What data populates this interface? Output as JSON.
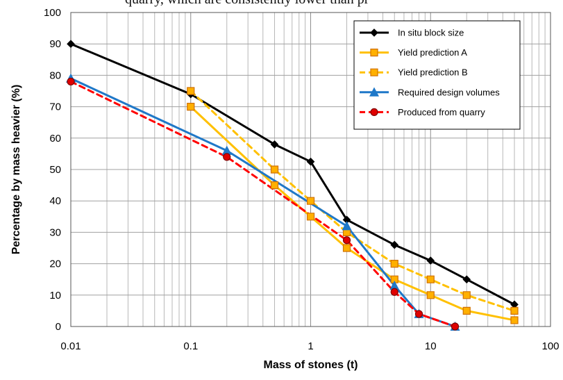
{
  "header": {
    "cropped_text": "quarry, which are consistently lower than pr"
  },
  "chart_data": {
    "type": "line",
    "title": "",
    "xlabel": "Mass of stones (t)",
    "ylabel": "Percentage by mass heavier (%)",
    "xscale": "log",
    "xlim": [
      0.01,
      100
    ],
    "ylim": [
      0,
      100
    ],
    "xticks": [
      0.01,
      0.1,
      1,
      10,
      100
    ],
    "xtick_labels": [
      "0.01",
      "0.1",
      "1",
      "10",
      "100"
    ],
    "yticks": [
      0,
      10,
      20,
      30,
      40,
      50,
      60,
      70,
      80,
      90,
      100
    ],
    "ytick_labels": [
      "0",
      "10",
      "20",
      "30",
      "40",
      "50",
      "60",
      "70",
      "80",
      "90",
      "100"
    ],
    "grid": true,
    "legend_position": "top-right",
    "series": [
      {
        "name": "In situ block size",
        "color": "#000000",
        "line_style": "solid",
        "marker": "diamond",
        "marker_fill": "#000000",
        "marker_edge": "#000000",
        "x": [
          0.01,
          0.1,
          0.5,
          1,
          2,
          5,
          10,
          20,
          50
        ],
        "y": [
          90,
          74,
          58,
          52.5,
          34,
          26,
          21,
          15,
          7
        ]
      },
      {
        "name": "Yield prediction A",
        "color": "#ffc000",
        "line_style": "solid",
        "marker": "square",
        "marker_fill": "#ffb000",
        "marker_edge": "#d07000",
        "x": [
          0.1,
          0.5,
          1,
          2,
          5,
          10,
          20,
          50
        ],
        "y": [
          70,
          45,
          35,
          25,
          15,
          10,
          5,
          2
        ]
      },
      {
        "name": "Yield prediction B",
        "color": "#ffc000",
        "line_style": "dashed",
        "marker": "square",
        "marker_fill": "#ffb000",
        "marker_edge": "#d07000",
        "x": [
          0.1,
          0.5,
          1,
          2,
          5,
          10,
          20,
          50
        ],
        "y": [
          75,
          50,
          40,
          30,
          20,
          15,
          10,
          5
        ]
      },
      {
        "name": "Required design volumes",
        "color": "#1f78c8",
        "line_style": "solid",
        "marker": "triangle",
        "marker_fill": "#1f78c8",
        "marker_edge": "#1f78c8",
        "x": [
          0.01,
          0.2,
          2,
          5,
          8,
          16
        ],
        "y": [
          79,
          56,
          32,
          13,
          4,
          0
        ]
      },
      {
        "name": "Produced from quarry",
        "color": "#ff0000",
        "line_style": "dashed",
        "marker": "circle",
        "marker_fill": "#e00000",
        "marker_edge": "#800000",
        "x": [
          0.01,
          0.2,
          2,
          5,
          8,
          16
        ],
        "y": [
          78,
          54,
          27.5,
          11,
          4,
          0
        ]
      }
    ]
  }
}
